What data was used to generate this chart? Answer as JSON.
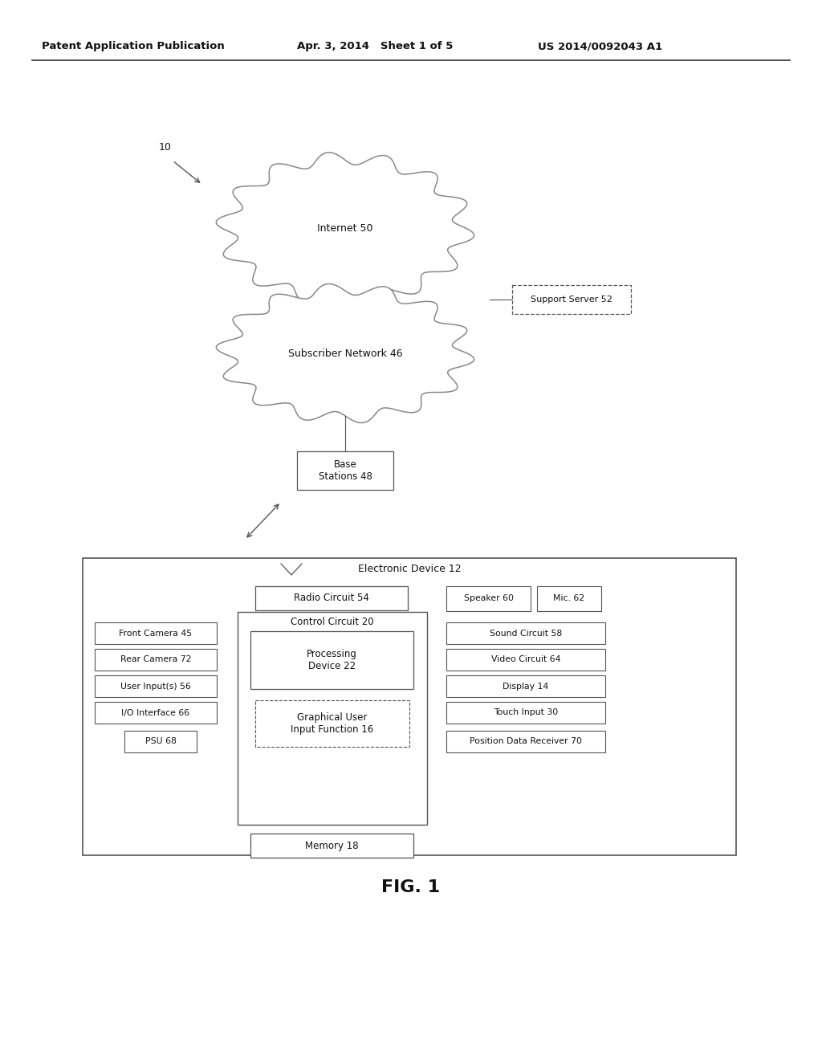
{
  "bg_color": "#ffffff",
  "header_left": "Patent Application Publication",
  "header_mid": "Apr. 3, 2014   Sheet 1 of 5",
  "header_right": "US 2014/0092043 A1",
  "fig_label": "FIG. 1",
  "diagram_label": "10",
  "cloud_internet_label": "Internet 50",
  "cloud_subscriber_label": "Subscriber Network 46",
  "support_server_label": "Support Server 52",
  "base_stations_label": "Base\nStations 48",
  "electronic_device_label": "Electronic Device 12",
  "radio_circuit_label": "Radio Circuit 54",
  "control_circuit_label": "Control Circuit 20",
  "processing_device_label": "Processing\nDevice 22",
  "gui_function_label": "Graphical User\nInput Function 16",
  "memory_label": "Memory 18",
  "front_camera_label": "Front Camera 45",
  "rear_camera_label": "Rear Camera 72",
  "user_inputs_label": "User Input(s) 56",
  "io_interface_label": "I/O Interface 66",
  "psu_label": "PSU 68",
  "speaker_label": "Speaker 60",
  "mic_label": "Mic. 62",
  "sound_circuit_label": "Sound Circuit 58",
  "video_circuit_label": "Video Circuit 64",
  "display_label": "Display 14",
  "touch_input_label": "Touch Input 30",
  "position_data_label": "Position Data Receiver 70",
  "line_color": "#555555",
  "text_color": "#111111"
}
